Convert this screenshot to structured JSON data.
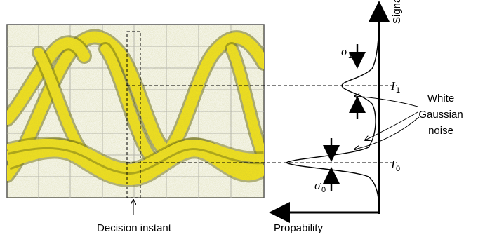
{
  "scope": {
    "caption": "Decision instant"
  },
  "axes": {
    "vertical_label": "Signal",
    "horizontal_label": "Propability"
  },
  "levels": {
    "one": {
      "symbol": "I",
      "subscript": "1"
    },
    "zero": {
      "symbol": "I",
      "subscript": "0"
    }
  },
  "spreads": {
    "one": {
      "symbol": "σ",
      "subscript": "1"
    },
    "zero": {
      "symbol": "σ",
      "subscript": "0"
    }
  },
  "noise_annotation": {
    "line1": "White",
    "line2": "Gaussian",
    "line3": "noise"
  },
  "colors": {
    "screen_bg": "#f8f8f0",
    "grid": "#b8b8b8",
    "trace": "#f0e020",
    "trace_edge": "#6a6a10"
  }
}
